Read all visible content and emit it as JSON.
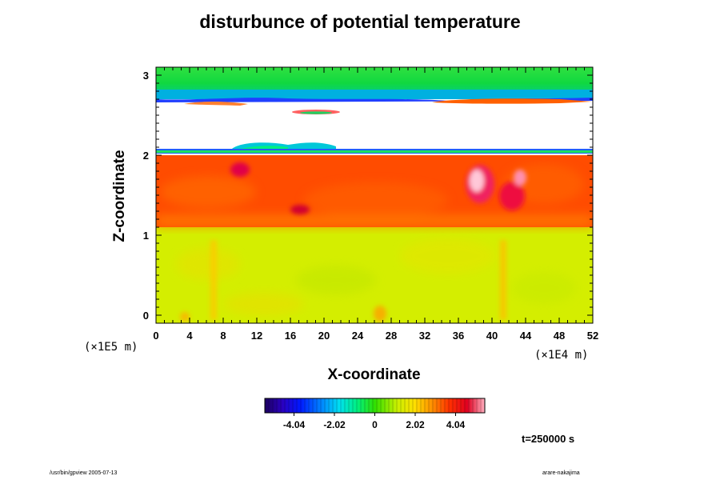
{
  "chart_data": {
    "type": "heatmap",
    "title": "disturbunce of potential temperature",
    "xlabel": "X-coordinate",
    "ylabel": "Z-coordinate",
    "x_scale_label": "(×1E4 m)",
    "y_scale_label": "(×1E5 m)",
    "xlim": [
      0,
      52
    ],
    "ylim": [
      -0.1,
      3.1
    ],
    "x_ticks": [
      "0",
      "4",
      "8",
      "12",
      "16",
      "20",
      "24",
      "28",
      "32",
      "36",
      "40",
      "44",
      "48",
      "52"
    ],
    "y_ticks": [
      "0",
      "1",
      "2",
      "3"
    ],
    "colorbar": {
      "ticks": [
        "-4.04",
        "-2.02",
        "0",
        "2.02",
        "4.04"
      ],
      "tick_values": [
        -4.04,
        -2.02,
        0,
        2.02,
        4.04
      ],
      "range": [
        -5.5,
        5.5
      ]
    },
    "regions": [
      {
        "z_range": [
          -0.1,
          1.1
        ],
        "color": "#d8f000",
        "description": "lower layer"
      },
      {
        "z_range": [
          1.1,
          2.0
        ],
        "color": "#ff4a00",
        "description": "middle layer"
      },
      {
        "z_range": [
          2.05,
          2.65
        ],
        "color": "#ffffff",
        "description": "white band"
      },
      {
        "z_range": [
          2.65,
          3.1
        ],
        "color": "#22dd33",
        "description": "top layer"
      }
    ]
  },
  "annotations": {
    "time": "t=250000 s",
    "footer_left": "/usr/bin/gpview 2005-07-13",
    "footer_right": "arare-nakajima"
  }
}
